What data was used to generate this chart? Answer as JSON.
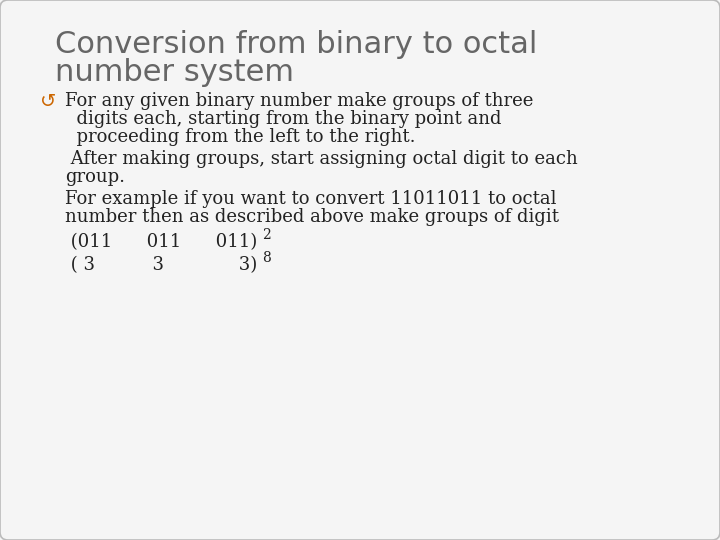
{
  "title_line1": "Conversion from binary to octal",
  "title_line2": "number system",
  "title_color": "#666666",
  "title_fontsize": 22,
  "body_fontsize": 13,
  "body_color": "#222222",
  "bullet_color": "#cc6600",
  "bg_color": "#f5f5f5",
  "border_color": "#bbbbbb",
  "bullet_symbol": "↺",
  "line1": "For any given binary number make groups of three",
  "line2": "  digits each, starting from the binary point and",
  "line3": "  proceeding from the left to the right.",
  "line4": " After making groups, start assigning octal digit to each",
  "line5": "group.",
  "line6": "For example if you want to convert 11011011 to octal",
  "line7": "number then as described above make groups of digit",
  "line8_main": " (011      011      011)",
  "line8_sub": "2",
  "line9_main": " ( 3          3             3)",
  "line9_sub": "8"
}
